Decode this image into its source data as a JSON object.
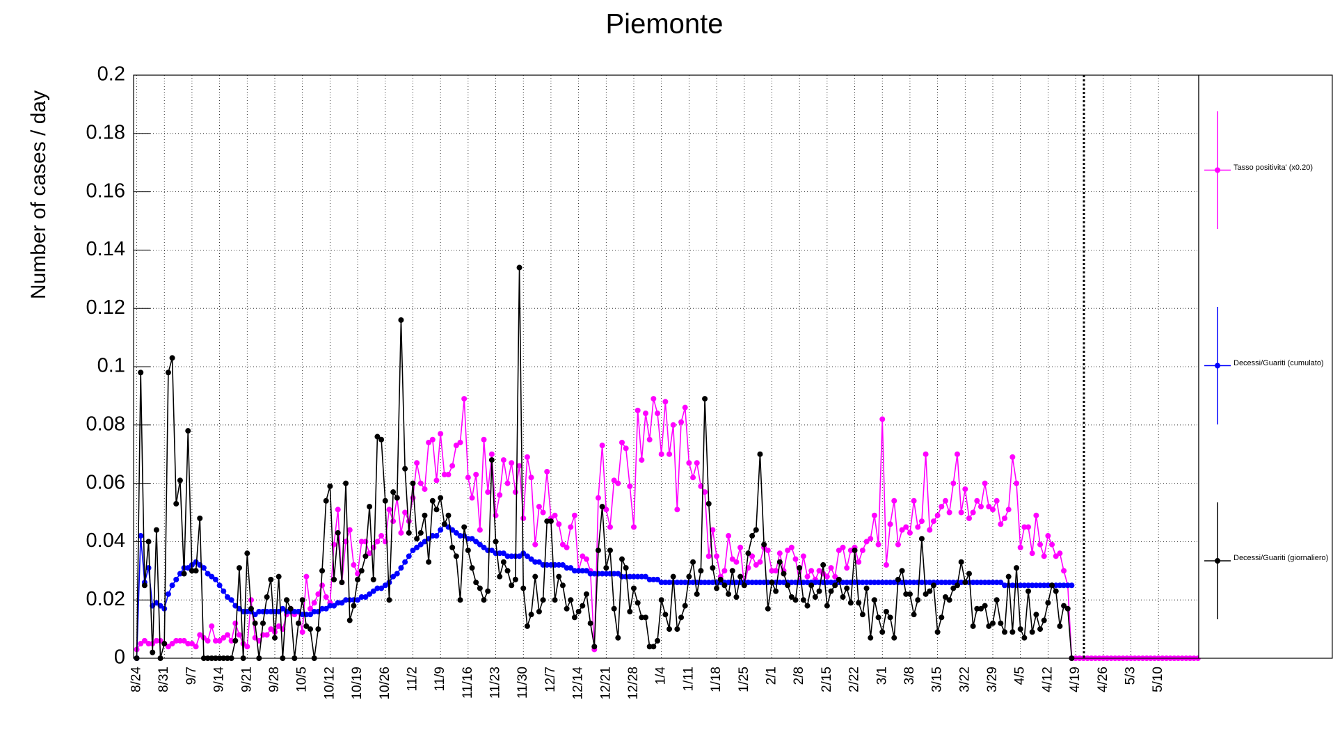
{
  "chart_data": {
    "type": "line",
    "title": "Piemonte",
    "y_label": "Number of cases / day",
    "categories": [
      "8/24",
      null,
      null,
      null,
      null,
      null,
      null,
      "8/31",
      null,
      null,
      null,
      null,
      null,
      null,
      "9/7",
      null,
      null,
      null,
      null,
      null,
      null,
      "9/14",
      null,
      null,
      null,
      null,
      null,
      null,
      "9/21",
      null,
      null,
      null,
      null,
      null,
      null,
      "9/28",
      null,
      null,
      null,
      null,
      null,
      null,
      "10/5",
      null,
      null,
      null,
      null,
      null,
      null,
      "10/12",
      null,
      null,
      null,
      null,
      null,
      null,
      "10/19",
      null,
      null,
      null,
      null,
      null,
      null,
      "10/26",
      null,
      null,
      null,
      null,
      null,
      null,
      "11/2",
      null,
      null,
      null,
      null,
      null,
      null,
      "11/9",
      null,
      null,
      null,
      null,
      null,
      null,
      "11/16",
      null,
      null,
      null,
      null,
      null,
      null,
      "11/23",
      null,
      null,
      null,
      null,
      null,
      null,
      "11/30",
      null,
      null,
      null,
      null,
      null,
      null,
      "12/7",
      null,
      null,
      null,
      null,
      null,
      null,
      "12/14",
      null,
      null,
      null,
      null,
      null,
      null,
      "12/21",
      null,
      null,
      null,
      null,
      null,
      null,
      "12/28",
      null,
      null,
      null,
      null,
      null,
      null,
      "1/4",
      null,
      null,
      null,
      null,
      null,
      null,
      "1/11",
      null,
      null,
      null,
      null,
      null,
      null,
      "1/18",
      null,
      null,
      null,
      null,
      null,
      null,
      "1/25",
      null,
      null,
      null,
      null,
      null,
      null,
      "2/1",
      null,
      null,
      null,
      null,
      null,
      null,
      "2/8",
      null,
      null,
      null,
      null,
      null,
      null,
      "2/15",
      null,
      null,
      null,
      null,
      null,
      null,
      "2/22",
      null,
      null,
      null,
      null,
      null,
      null,
      "3/1",
      null,
      null,
      null,
      null,
      null,
      null,
      "3/8",
      null,
      null,
      null,
      null,
      null,
      null,
      "3/15",
      null,
      null,
      null,
      null,
      null,
      null,
      "3/22",
      null,
      null,
      null,
      null,
      null,
      null,
      "3/29",
      null,
      null,
      null,
      null,
      null,
      null,
      "4/5",
      null,
      null,
      null,
      null,
      null,
      null,
      "4/12",
      null,
      null,
      null,
      null,
      null,
      null,
      "4/19",
      null,
      null,
      null,
      null,
      null,
      null,
      "4/26",
      null,
      null,
      null,
      null,
      null,
      null,
      "5/3",
      null,
      null,
      null,
      null,
      null,
      null,
      "5/10",
      null,
      null,
      null,
      null,
      null,
      null,
      null,
      null,
      null,
      null
    ],
    "series": [
      {
        "name": "Tasso positivita' (x0.20)",
        "color": "#ff00ff",
        "values": [
          0.003,
          0.005,
          0.006,
          0.005,
          0.005,
          0.006,
          0.006,
          0.005,
          0.004,
          0.005,
          0.006,
          0.006,
          0.006,
          0.005,
          0.005,
          0.004,
          0.008,
          0.007,
          0.006,
          0.011,
          0.006,
          0.006,
          0.007,
          0.008,
          0.006,
          0.012,
          0.008,
          0.005,
          0.004,
          0.02,
          0.007,
          0.006,
          0.008,
          0.008,
          0.01,
          0.009,
          0.011,
          0.01,
          0.015,
          0.017,
          0.015,
          0.016,
          0.009,
          0.028,
          0.017,
          0.019,
          0.022,
          0.025,
          0.021,
          0.019,
          0.039,
          0.051,
          0.026,
          0.04,
          0.044,
          0.032,
          0.029,
          0.04,
          0.04,
          0.036,
          0.038,
          0.04,
          0.042,
          0.04,
          0.051,
          0.047,
          0.055,
          0.043,
          0.05,
          0.047,
          0.055,
          0.067,
          0.06,
          0.058,
          0.074,
          0.075,
          0.061,
          0.077,
          0.063,
          0.063,
          0.066,
          0.073,
          0.074,
          0.089,
          0.062,
          0.055,
          0.063,
          0.044,
          0.075,
          0.057,
          0.07,
          0.049,
          0.056,
          0.068,
          0.06,
          0.067,
          0.057,
          0.066,
          0.048,
          0.069,
          0.062,
          0.039,
          0.052,
          0.05,
          0.064,
          0.048,
          0.049,
          0.046,
          0.039,
          0.038,
          0.045,
          0.049,
          0.03,
          0.035,
          0.034,
          0.03,
          0.003,
          0.055,
          0.073,
          0.051,
          0.045,
          0.061,
          0.06,
          0.074,
          0.072,
          0.059,
          0.045,
          0.085,
          0.068,
          0.084,
          0.075,
          0.089,
          0.084,
          0.07,
          0.088,
          0.07,
          0.08,
          0.051,
          0.081,
          0.086,
          0.067,
          0.062,
          0.067,
          0.059,
          0.057,
          0.035,
          0.044,
          0.035,
          0.028,
          0.03,
          0.042,
          0.034,
          0.033,
          0.038,
          0.025,
          0.031,
          0.035,
          0.032,
          0.033,
          0.038,
          0.037,
          0.03,
          0.03,
          0.036,
          0.03,
          0.037,
          0.038,
          0.034,
          0.026,
          0.035,
          0.028,
          0.03,
          0.027,
          0.03,
          0.029,
          0.028,
          0.031,
          0.028,
          0.037,
          0.038,
          0.031,
          0.037,
          0.038,
          0.033,
          0.037,
          0.04,
          0.041,
          0.049,
          0.039,
          0.082,
          0.032,
          0.046,
          0.054,
          0.039,
          0.044,
          0.045,
          0.043,
          0.054,
          0.045,
          0.047,
          0.07,
          0.044,
          0.047,
          0.049,
          0.052,
          0.054,
          0.05,
          0.06,
          0.07,
          0.05,
          0.058,
          0.048,
          0.05,
          0.054,
          0.052,
          0.06,
          0.052,
          0.051,
          0.054,
          0.046,
          0.048,
          0.051,
          0.069,
          0.06,
          0.038,
          0.045,
          0.045,
          0.036,
          0.049,
          0.039,
          0.035,
          0.042,
          0.039,
          0.035,
          0.036,
          0.03,
          0.025,
          0,
          0,
          0,
          0,
          0,
          0,
          0,
          0,
          0,
          0,
          0,
          0,
          0,
          0,
          0,
          0,
          0,
          0,
          0,
          0,
          0,
          0,
          0,
          0,
          0,
          0,
          0,
          0,
          0,
          0,
          0,
          0,
          0
        ]
      },
      {
        "name": "Decessi/Guariti (cumulato)",
        "color": "#0000ff",
        "values": [
          0.0,
          0.042,
          0.026,
          0.031,
          0.018,
          0.019,
          0.018,
          0.017,
          0.022,
          0.025,
          0.027,
          0.029,
          0.031,
          0.031,
          0.032,
          0.033,
          0.032,
          0.031,
          0.029,
          0.028,
          0.027,
          0.025,
          0.023,
          0.021,
          0.02,
          0.018,
          0.017,
          0.016,
          0.016,
          0.016,
          0.015,
          0.016,
          0.016,
          0.016,
          0.016,
          0.016,
          0.016,
          0.017,
          0.016,
          0.016,
          0.016,
          0.016,
          0.015,
          0.015,
          0.015,
          0.016,
          0.016,
          0.017,
          0.017,
          0.018,
          0.018,
          0.019,
          0.019,
          0.02,
          0.02,
          0.02,
          0.02,
          0.021,
          0.021,
          0.022,
          0.023,
          0.024,
          0.024,
          0.025,
          0.026,
          0.028,
          0.029,
          0.031,
          0.033,
          0.035,
          0.037,
          0.038,
          0.039,
          0.04,
          0.041,
          0.042,
          0.042,
          0.044,
          0.046,
          0.045,
          0.044,
          0.043,
          0.042,
          0.042,
          0.041,
          0.041,
          0.04,
          0.039,
          0.038,
          0.037,
          0.037,
          0.036,
          0.036,
          0.036,
          0.035,
          0.035,
          0.035,
          0.035,
          0.036,
          0.035,
          0.034,
          0.033,
          0.033,
          0.032,
          0.032,
          0.032,
          0.032,
          0.032,
          0.032,
          0.031,
          0.031,
          0.03,
          0.03,
          0.03,
          0.03,
          0.029,
          0.029,
          0.029,
          0.029,
          0.029,
          0.029,
          0.029,
          0.029,
          0.028,
          0.028,
          0.028,
          0.028,
          0.028,
          0.028,
          0.028,
          0.027,
          0.027,
          0.027,
          0.026,
          0.026,
          0.026,
          0.026,
          0.026,
          0.026,
          0.026,
          0.026,
          0.026,
          0.026,
          0.026,
          0.026,
          0.026,
          0.026,
          0.026,
          0.026,
          0.026,
          0.026,
          0.026,
          0.026,
          0.026,
          0.026,
          0.026,
          0.026,
          0.026,
          0.026,
          0.026,
          0.026,
          0.026,
          0.026,
          0.026,
          0.026,
          0.026,
          0.026,
          0.026,
          0.026,
          0.026,
          0.026,
          0.026,
          0.026,
          0.026,
          0.026,
          0.026,
          0.026,
          0.026,
          0.026,
          0.026,
          0.026,
          0.026,
          0.026,
          0.026,
          0.026,
          0.026,
          0.026,
          0.026,
          0.026,
          0.026,
          0.026,
          0.026,
          0.026,
          0.026,
          0.026,
          0.026,
          0.026,
          0.026,
          0.026,
          0.026,
          0.026,
          0.026,
          0.026,
          0.026,
          0.026,
          0.026,
          0.026,
          0.026,
          0.026,
          0.026,
          0.026,
          0.026,
          0.026,
          0.026,
          0.026,
          0.026,
          0.026,
          0.026,
          0.026,
          0.026,
          0.025,
          0.025,
          0.025,
          0.025,
          0.025,
          0.025,
          0.025,
          0.025,
          0.025,
          0.025,
          0.025,
          0.025,
          0.025,
          0.025,
          0.025,
          0.025,
          0.025,
          0.025,
          null,
          null,
          null,
          null,
          null,
          null,
          null,
          null,
          null,
          null,
          null,
          null,
          null,
          null,
          null,
          null,
          null,
          null,
          null,
          null,
          null,
          null,
          null,
          null,
          null,
          null,
          null,
          null,
          null,
          null,
          null,
          null
        ]
      },
      {
        "name": "Decessi/Guariti (giornaliero)",
        "color": "#000000",
        "values": [
          0.0,
          0.098,
          0.025,
          0.04,
          0.002,
          0.044,
          0.0,
          0.005,
          0.098,
          0.103,
          0.053,
          0.061,
          0.029,
          0.078,
          0.03,
          0.03,
          0.048,
          0.0,
          0.0,
          0.0,
          0.0,
          0.0,
          0.0,
          0.0,
          0.0,
          0.006,
          0.031,
          0.0,
          0.036,
          0.017,
          0.012,
          0.0,
          0.012,
          0.021,
          0.027,
          0.007,
          0.028,
          0.0,
          0.02,
          0.017,
          0.0,
          0.012,
          0.02,
          0.011,
          0.01,
          0.0,
          0.01,
          0.03,
          0.054,
          0.059,
          0.027,
          0.043,
          0.026,
          0.06,
          0.013,
          0.018,
          0.027,
          0.03,
          0.035,
          0.052,
          0.027,
          0.076,
          0.075,
          0.054,
          0.02,
          0.057,
          0.055,
          0.116,
          0.065,
          0.043,
          0.06,
          0.041,
          0.043,
          0.049,
          0.033,
          0.054,
          0.051,
          0.055,
          0.046,
          0.049,
          0.038,
          0.035,
          0.02,
          0.045,
          0.037,
          0.031,
          0.026,
          0.024,
          0.02,
          0.023,
          0.068,
          0.04,
          0.028,
          0.033,
          0.03,
          0.025,
          0.027,
          0.134,
          0.024,
          0.011,
          0.015,
          0.028,
          0.016,
          0.02,
          0.047,
          0.047,
          0.02,
          0.028,
          0.025,
          0.017,
          0.02,
          0.014,
          0.016,
          0.018,
          0.022,
          0.012,
          0.004,
          0.037,
          0.052,
          0.031,
          0.037,
          0.017,
          0.007,
          0.034,
          0.031,
          0.016,
          0.024,
          0.019,
          0.014,
          0.014,
          0.004,
          0.004,
          0.006,
          0.02,
          0.015,
          0.01,
          0.028,
          0.01,
          0.014,
          0.018,
          0.028,
          0.033,
          0.022,
          0.03,
          0.089,
          0.053,
          0.031,
          0.024,
          0.027,
          0.025,
          0.022,
          0.03,
          0.021,
          0.028,
          0.025,
          0.036,
          0.042,
          0.044,
          0.07,
          0.039,
          0.017,
          0.026,
          0.023,
          0.033,
          0.029,
          0.025,
          0.021,
          0.02,
          0.031,
          0.02,
          0.018,
          0.025,
          0.021,
          0.023,
          0.032,
          0.018,
          0.023,
          0.025,
          0.027,
          0.021,
          0.024,
          0.019,
          0.037,
          0.019,
          0.015,
          0.024,
          0.007,
          0.02,
          0.014,
          0.009,
          0.016,
          0.014,
          0.007,
          0.027,
          0.03,
          0.022,
          0.022,
          0.015,
          0.02,
          0.041,
          0.022,
          0.023,
          0.025,
          0.009,
          0.014,
          0.021,
          0.02,
          0.024,
          0.025,
          0.033,
          0.026,
          0.029,
          0.011,
          0.017,
          0.017,
          0.018,
          0.011,
          0.012,
          0.02,
          0.012,
          0.009,
          0.028,
          0.009,
          0.031,
          0.01,
          0.007,
          0.023,
          0.009,
          0.015,
          0.01,
          0.013,
          0.019,
          0.025,
          0.023,
          0.011,
          0.018,
          0.017,
          0.0,
          null,
          null,
          null,
          null,
          null,
          null,
          null,
          null,
          null,
          null,
          null,
          null,
          null,
          null,
          null,
          null,
          null,
          null,
          null,
          null,
          null,
          null,
          null,
          null,
          null,
          null,
          null,
          null,
          null,
          null,
          null,
          null
        ]
      }
    ],
    "ylim": [
      0,
      0.2
    ],
    "yticks": [
      0,
      0.02,
      0.04,
      0.06,
      0.08,
      0.1,
      0.12,
      0.14,
      0.16,
      0.18,
      0.2
    ],
    "grid": true,
    "legend": "right"
  }
}
